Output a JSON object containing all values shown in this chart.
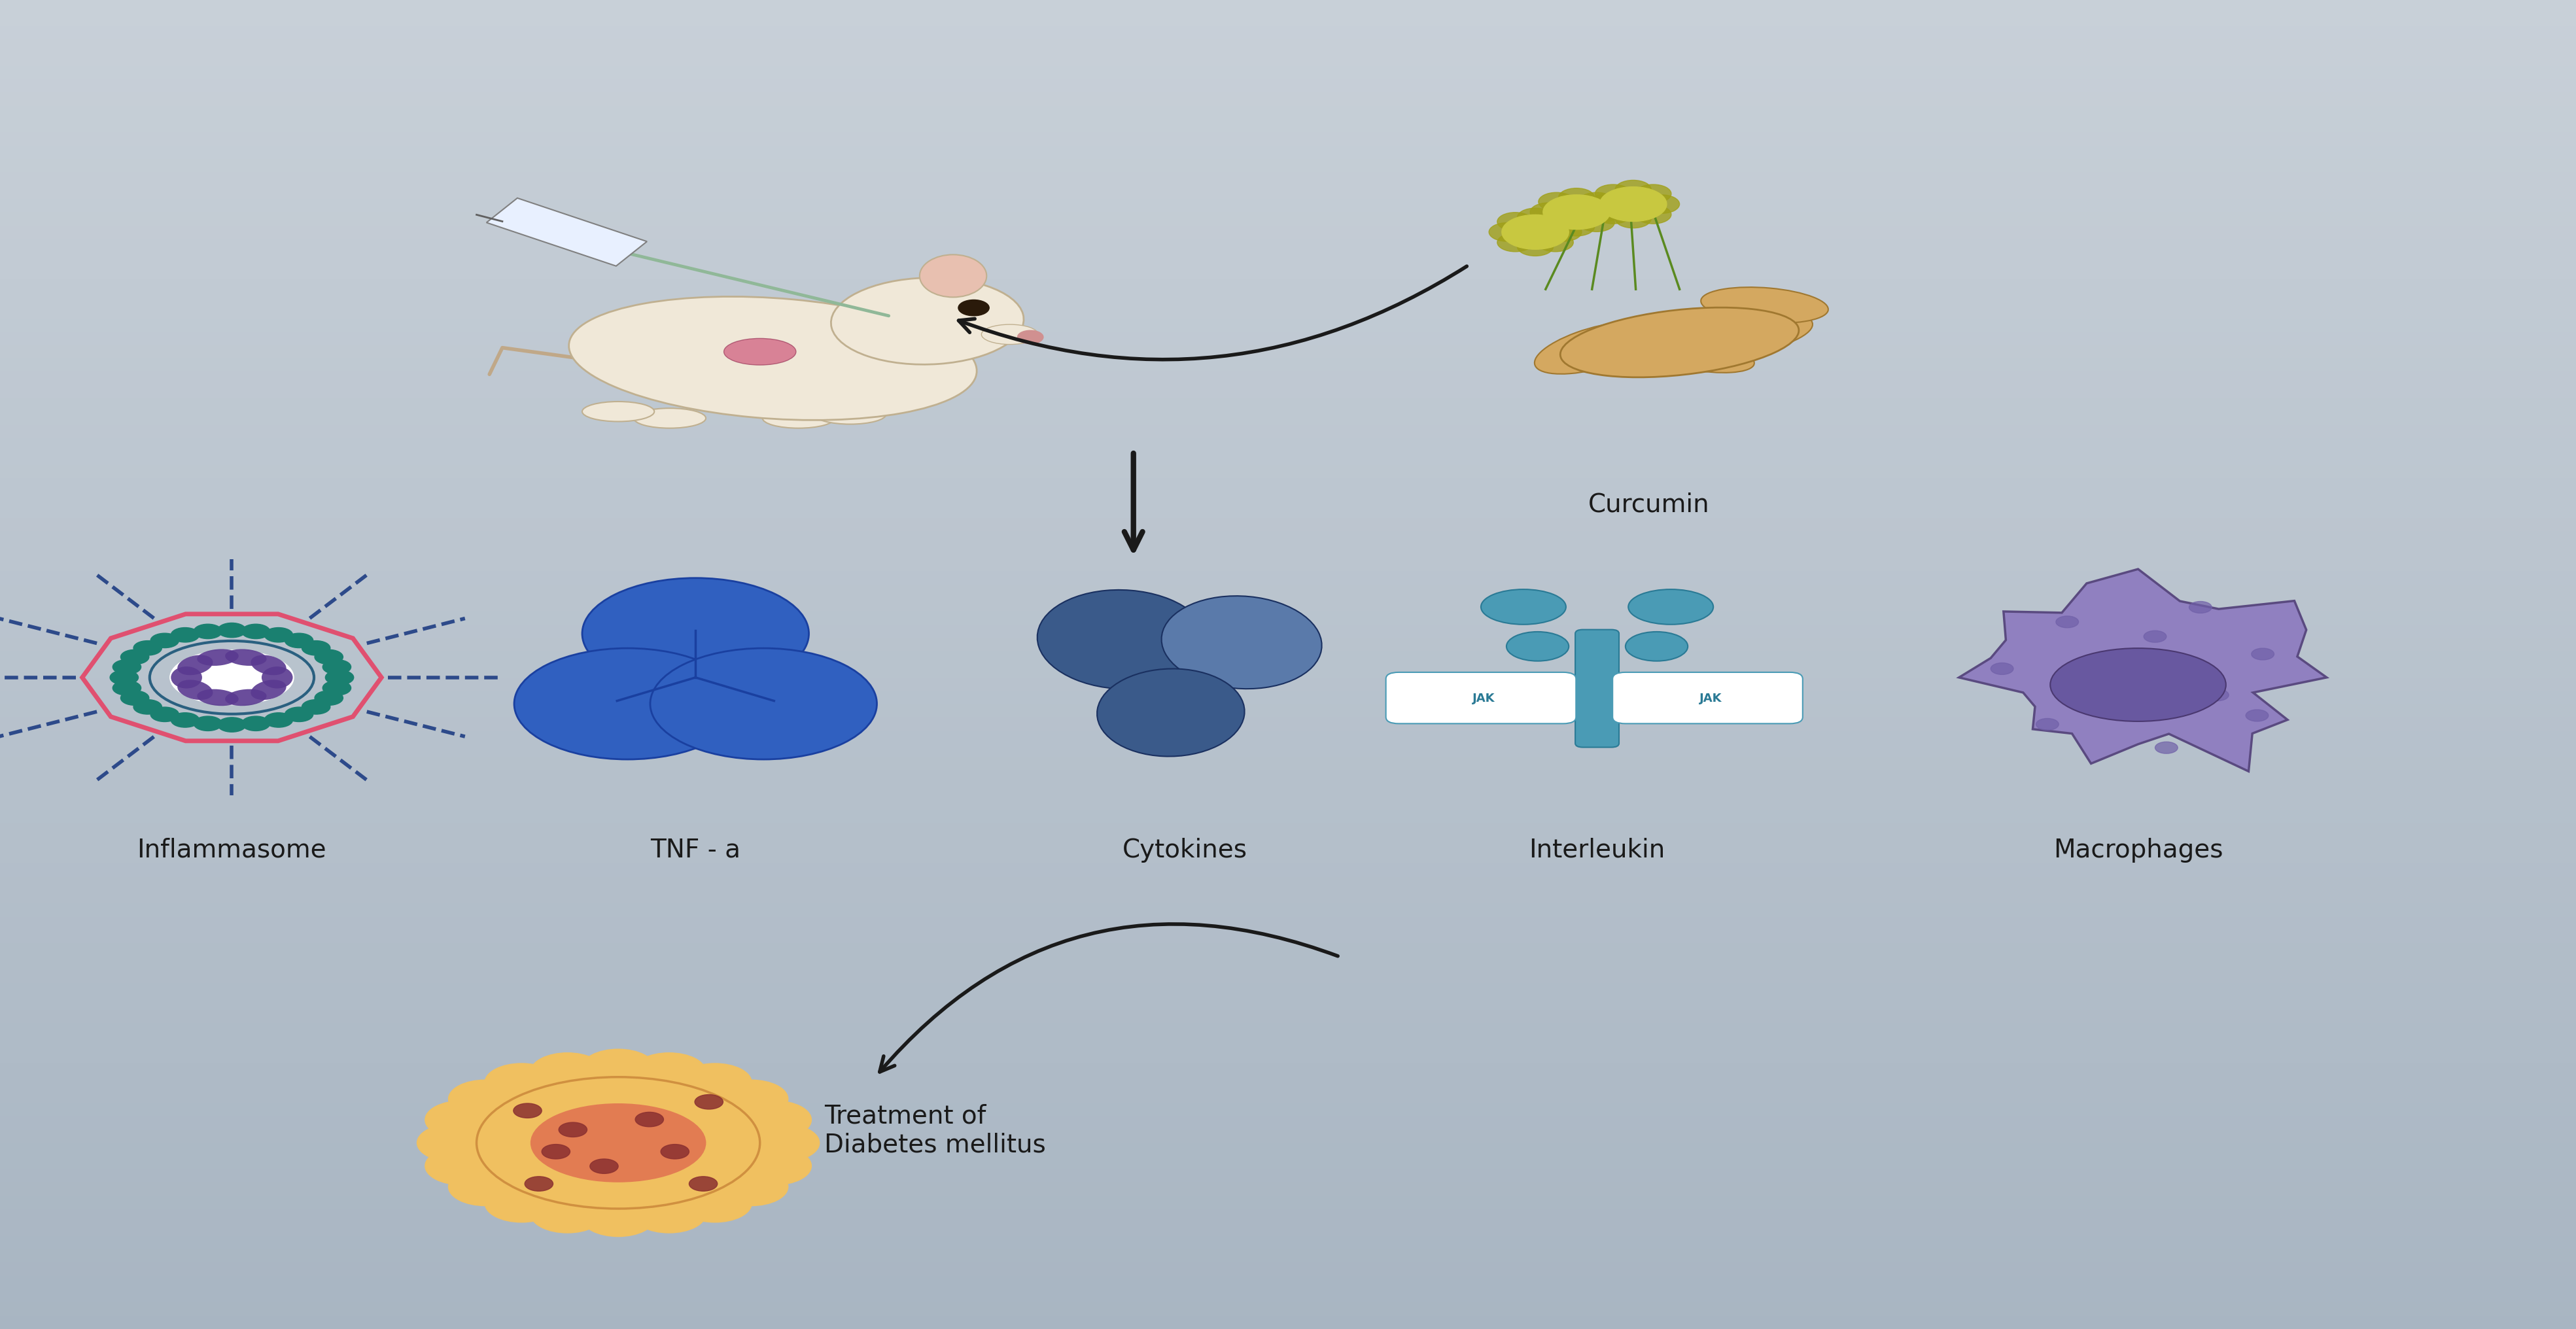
{
  "bg_color": "#b8c5d2",
  "fig_width": 39.38,
  "fig_height": 20.33,
  "labels": {
    "curcumin": "Curcumin",
    "inflammasome": "Inflammasome",
    "tnf": "TNF - a",
    "cytokines": "Cytokines",
    "interleukin": "Interleukin",
    "macrophages": "Macrophages",
    "treatment": "Treatment of\nDiabetes mellitus"
  },
  "label_fontsize": 28,
  "label_color": "#1a1a1a",
  "arrow_color": "#1a1a1a",
  "jak_color": "#4a9bb5",
  "jak_dark": "#2a7a95",
  "inflammasome_spike_color": "#2d4a8a",
  "inflammasome_outer_color": "#e05070",
  "inflammasome_mid_color": "#1a8070",
  "inflammasome_inner_color": "#2a6080",
  "inflammasome_center_color": "#5a3a90",
  "tnf_color": "#3060c0",
  "tnf_dark": "#1a40a0",
  "cytokine_color1": "#3a5a8a",
  "cytokine_color2": "#5a7aaa",
  "cytokine_dark": "#1a3060",
  "macrophage_color": "#9080c0",
  "macrophage_nucleus_color": "#6858a0",
  "macrophage_border": "#5a4a80",
  "treatment_color": "#f0c060",
  "treatment_border": "#d09040",
  "treatment_center": "#e07050",
  "treatment_spots": "#8a3030",
  "mouse_body_color": "#f0e8d8",
  "mouse_body_border": "#c0b090",
  "mouse_ear_color": "#e8c0b0",
  "mouse_organ_color": "#d06080",
  "root_color": "#d4a860",
  "root_dark": "#a07830",
  "stem_color": "#5a8a20",
  "flower_color": "#c8c840"
}
